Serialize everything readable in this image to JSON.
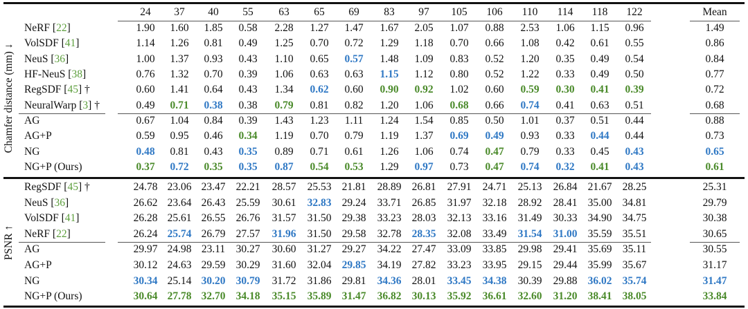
{
  "columns": [
    "24",
    "37",
    "40",
    "55",
    "63",
    "65",
    "69",
    "83",
    "97",
    "105",
    "106",
    "110",
    "114",
    "118",
    "122"
  ],
  "mean_label": "Mean",
  "colors": {
    "best": "#4a8a2a",
    "second": "#2f78c4",
    "cite": "#5c9e3c"
  },
  "sections": [
    {
      "label": "Chamfer distance (mm) ↓",
      "groups": [
        [
          {
            "name": "NeRF",
            "ref": "22",
            "dagger": false,
            "values": [
              "1.90",
              "1.60",
              "1.85",
              "0.58",
              "2.28",
              "1.27",
              "1.47",
              "1.67",
              "2.05",
              "1.07",
              "0.88",
              "2.53",
              "1.06",
              "1.15",
              "0.96"
            ],
            "mean": "1.49",
            "hl": {}
          },
          {
            "name": "VolSDF",
            "ref": "41",
            "dagger": false,
            "values": [
              "1.14",
              "1.26",
              "0.81",
              "0.49",
              "1.25",
              "0.70",
              "0.72",
              "1.29",
              "1.18",
              "0.70",
              "0.66",
              "1.08",
              "0.42",
              "0.61",
              "0.55"
            ],
            "mean": "0.86",
            "hl": {}
          },
          {
            "name": "NeuS",
            "ref": "36",
            "dagger": false,
            "values": [
              "1.00",
              "1.37",
              "0.93",
              "0.43",
              "1.10",
              "0.65",
              "0.57",
              "1.48",
              "1.09",
              "0.83",
              "0.52",
              "1.20",
              "0.35",
              "0.49",
              "0.54"
            ],
            "mean": "0.84",
            "hl": {
              "6": "blue"
            }
          },
          {
            "name": "HF-NeuS",
            "ref": "38",
            "dagger": false,
            "values": [
              "0.76",
              "1.32",
              "0.70",
              "0.39",
              "1.06",
              "0.63",
              "0.63",
              "1.15",
              "1.12",
              "0.80",
              "0.52",
              "1.22",
              "0.33",
              "0.49",
              "0.50"
            ],
            "mean": "0.77",
            "hl": {
              "7": "blue"
            }
          },
          {
            "name": "RegSDF",
            "ref": "45",
            "dagger": true,
            "values": [
              "0.60",
              "1.41",
              "0.64",
              "0.43",
              "1.34",
              "0.62",
              "0.60",
              "0.90",
              "0.92",
              "1.02",
              "0.60",
              "0.59",
              "0.30",
              "0.41",
              "0.39"
            ],
            "mean": "0.72",
            "hl": {
              "5": "blue",
              "7": "green",
              "8": "green",
              "11": "green",
              "12": "green",
              "13": "green",
              "14": "green"
            }
          },
          {
            "name": "NeuralWarp",
            "ref": "3",
            "dagger": true,
            "values": [
              "0.49",
              "0.71",
              "0.38",
              "0.38",
              "0.79",
              "0.81",
              "0.82",
              "1.20",
              "1.06",
              "0.68",
              "0.66",
              "0.74",
              "0.41",
              "0.63",
              "0.51"
            ],
            "mean": "0.68",
            "hl": {
              "1": "green",
              "2": "blue",
              "4": "green",
              "9": "green",
              "11": "blue"
            }
          }
        ],
        [
          {
            "name": "AG",
            "values": [
              "0.67",
              "1.04",
              "0.84",
              "0.39",
              "1.43",
              "1.23",
              "1.11",
              "1.24",
              "1.54",
              "0.85",
              "0.50",
              "1.01",
              "0.37",
              "0.51",
              "0.44"
            ],
            "mean": "0.88",
            "hl": {}
          },
          {
            "name": "AG+P",
            "values": [
              "0.59",
              "0.95",
              "0.46",
              "0.34",
              "1.19",
              "0.70",
              "0.79",
              "1.19",
              "1.37",
              "0.69",
              "0.49",
              "0.93",
              "0.33",
              "0.44",
              "0.44"
            ],
            "mean": "0.73",
            "hl": {
              "3": "green",
              "9": "blue",
              "10": "blue",
              "13": "blue"
            }
          },
          {
            "name": "NG",
            "values": [
              "0.48",
              "0.81",
              "0.43",
              "0.35",
              "0.89",
              "0.71",
              "0.61",
              "1.26",
              "1.06",
              "0.74",
              "0.47",
              "0.79",
              "0.33",
              "0.45",
              "0.43"
            ],
            "mean": "0.65",
            "hl": {
              "0": "blue",
              "3": "blue",
              "10": "green",
              "14": "blue",
              "mean": "blue"
            }
          },
          {
            "name": "NG+P (Ours)",
            "values": [
              "0.37",
              "0.72",
              "0.35",
              "0.35",
              "0.87",
              "0.54",
              "0.53",
              "1.29",
              "0.97",
              "0.73",
              "0.47",
              "0.74",
              "0.32",
              "0.41",
              "0.43"
            ],
            "mean": "0.61",
            "hl": {
              "0": "green",
              "1": "blue",
              "2": "green",
              "3": "blue",
              "4": "blue",
              "5": "green",
              "6": "green",
              "8": "blue",
              "10": "green",
              "11": "blue",
              "12": "blue",
              "13": "green",
              "14": "blue",
              "mean": "green"
            }
          }
        ]
      ]
    },
    {
      "label": "PSNR ↑",
      "groups": [
        [
          {
            "name": "RegSDF",
            "ref": "45",
            "dagger": true,
            "values": [
              "24.78",
              "23.06",
              "23.47",
              "22.21",
              "28.57",
              "25.53",
              "21.81",
              "28.89",
              "26.81",
              "27.91",
              "24.71",
              "25.13",
              "26.84",
              "21.67",
              "28.25"
            ],
            "mean": "25.31",
            "hl": {}
          },
          {
            "name": "NeuS",
            "ref": "36",
            "dagger": false,
            "values": [
              "26.62",
              "23.64",
              "26.43",
              "25.59",
              "30.61",
              "32.83",
              "29.24",
              "33.71",
              "26.85",
              "31.97",
              "32.18",
              "28.92",
              "28.41",
              "35.00",
              "34.81"
            ],
            "mean": "29.79",
            "hl": {
              "5": "blue"
            }
          },
          {
            "name": "VolSDF",
            "ref": "41",
            "dagger": false,
            "values": [
              "26.28",
              "25.61",
              "26.55",
              "26.76",
              "31.57",
              "31.50",
              "29.38",
              "33.23",
              "28.03",
              "32.13",
              "33.16",
              "31.49",
              "30.33",
              "34.90",
              "34.75"
            ],
            "mean": "30.38",
            "hl": {}
          },
          {
            "name": "NeRF",
            "ref": "22",
            "dagger": false,
            "values": [
              "26.24",
              "25.74",
              "26.79",
              "27.57",
              "31.96",
              "31.50",
              "29.58",
              "32.78",
              "28.35",
              "32.08",
              "33.49",
              "31.54",
              "31.00",
              "35.59",
              "35.51"
            ],
            "mean": "30.65",
            "hl": {
              "1": "blue",
              "4": "blue",
              "8": "blue",
              "11": "blue",
              "12": "blue"
            }
          }
        ],
        [
          {
            "name": "AG",
            "values": [
              "29.97",
              "24.98",
              "23.11",
              "30.27",
              "30.60",
              "31.27",
              "29.27",
              "34.22",
              "27.47",
              "33.09",
              "33.85",
              "29.98",
              "29.41",
              "35.69",
              "35.11"
            ],
            "mean": "30.55",
            "hl": {}
          },
          {
            "name": "AG+P",
            "values": [
              "30.12",
              "24.63",
              "29.59",
              "30.29",
              "31.60",
              "32.04",
              "29.85",
              "34.19",
              "27.82",
              "33.23",
              "33.95",
              "29.15",
              "29.44",
              "35.99",
              "35.67"
            ],
            "mean": "31.17",
            "hl": {
              "6": "blue"
            }
          },
          {
            "name": "NG",
            "values": [
              "30.34",
              "25.14",
              "30.20",
              "30.79",
              "31.72",
              "31.86",
              "29.81",
              "34.36",
              "28.01",
              "33.45",
              "34.38",
              "30.39",
              "29.88",
              "36.02",
              "35.74"
            ],
            "mean": "31.47",
            "hl": {
              "0": "blue",
              "2": "blue",
              "3": "blue",
              "7": "blue",
              "9": "blue",
              "10": "blue",
              "13": "blue",
              "14": "blue",
              "mean": "blue"
            }
          },
          {
            "name": "NG+P (Ours)",
            "values": [
              "30.64",
              "27.78",
              "32.70",
              "34.18",
              "35.15",
              "35.89",
              "31.47",
              "36.82",
              "30.13",
              "35.92",
              "36.61",
              "32.60",
              "31.20",
              "38.41",
              "38.05"
            ],
            "mean": "33.84",
            "hl": {
              "0": "green",
              "1": "green",
              "2": "green",
              "3": "green",
              "4": "green",
              "5": "green",
              "6": "green",
              "7": "green",
              "8": "green",
              "9": "green",
              "10": "green",
              "11": "green",
              "12": "green",
              "13": "green",
              "14": "green",
              "mean": "green"
            }
          }
        ]
      ]
    }
  ]
}
